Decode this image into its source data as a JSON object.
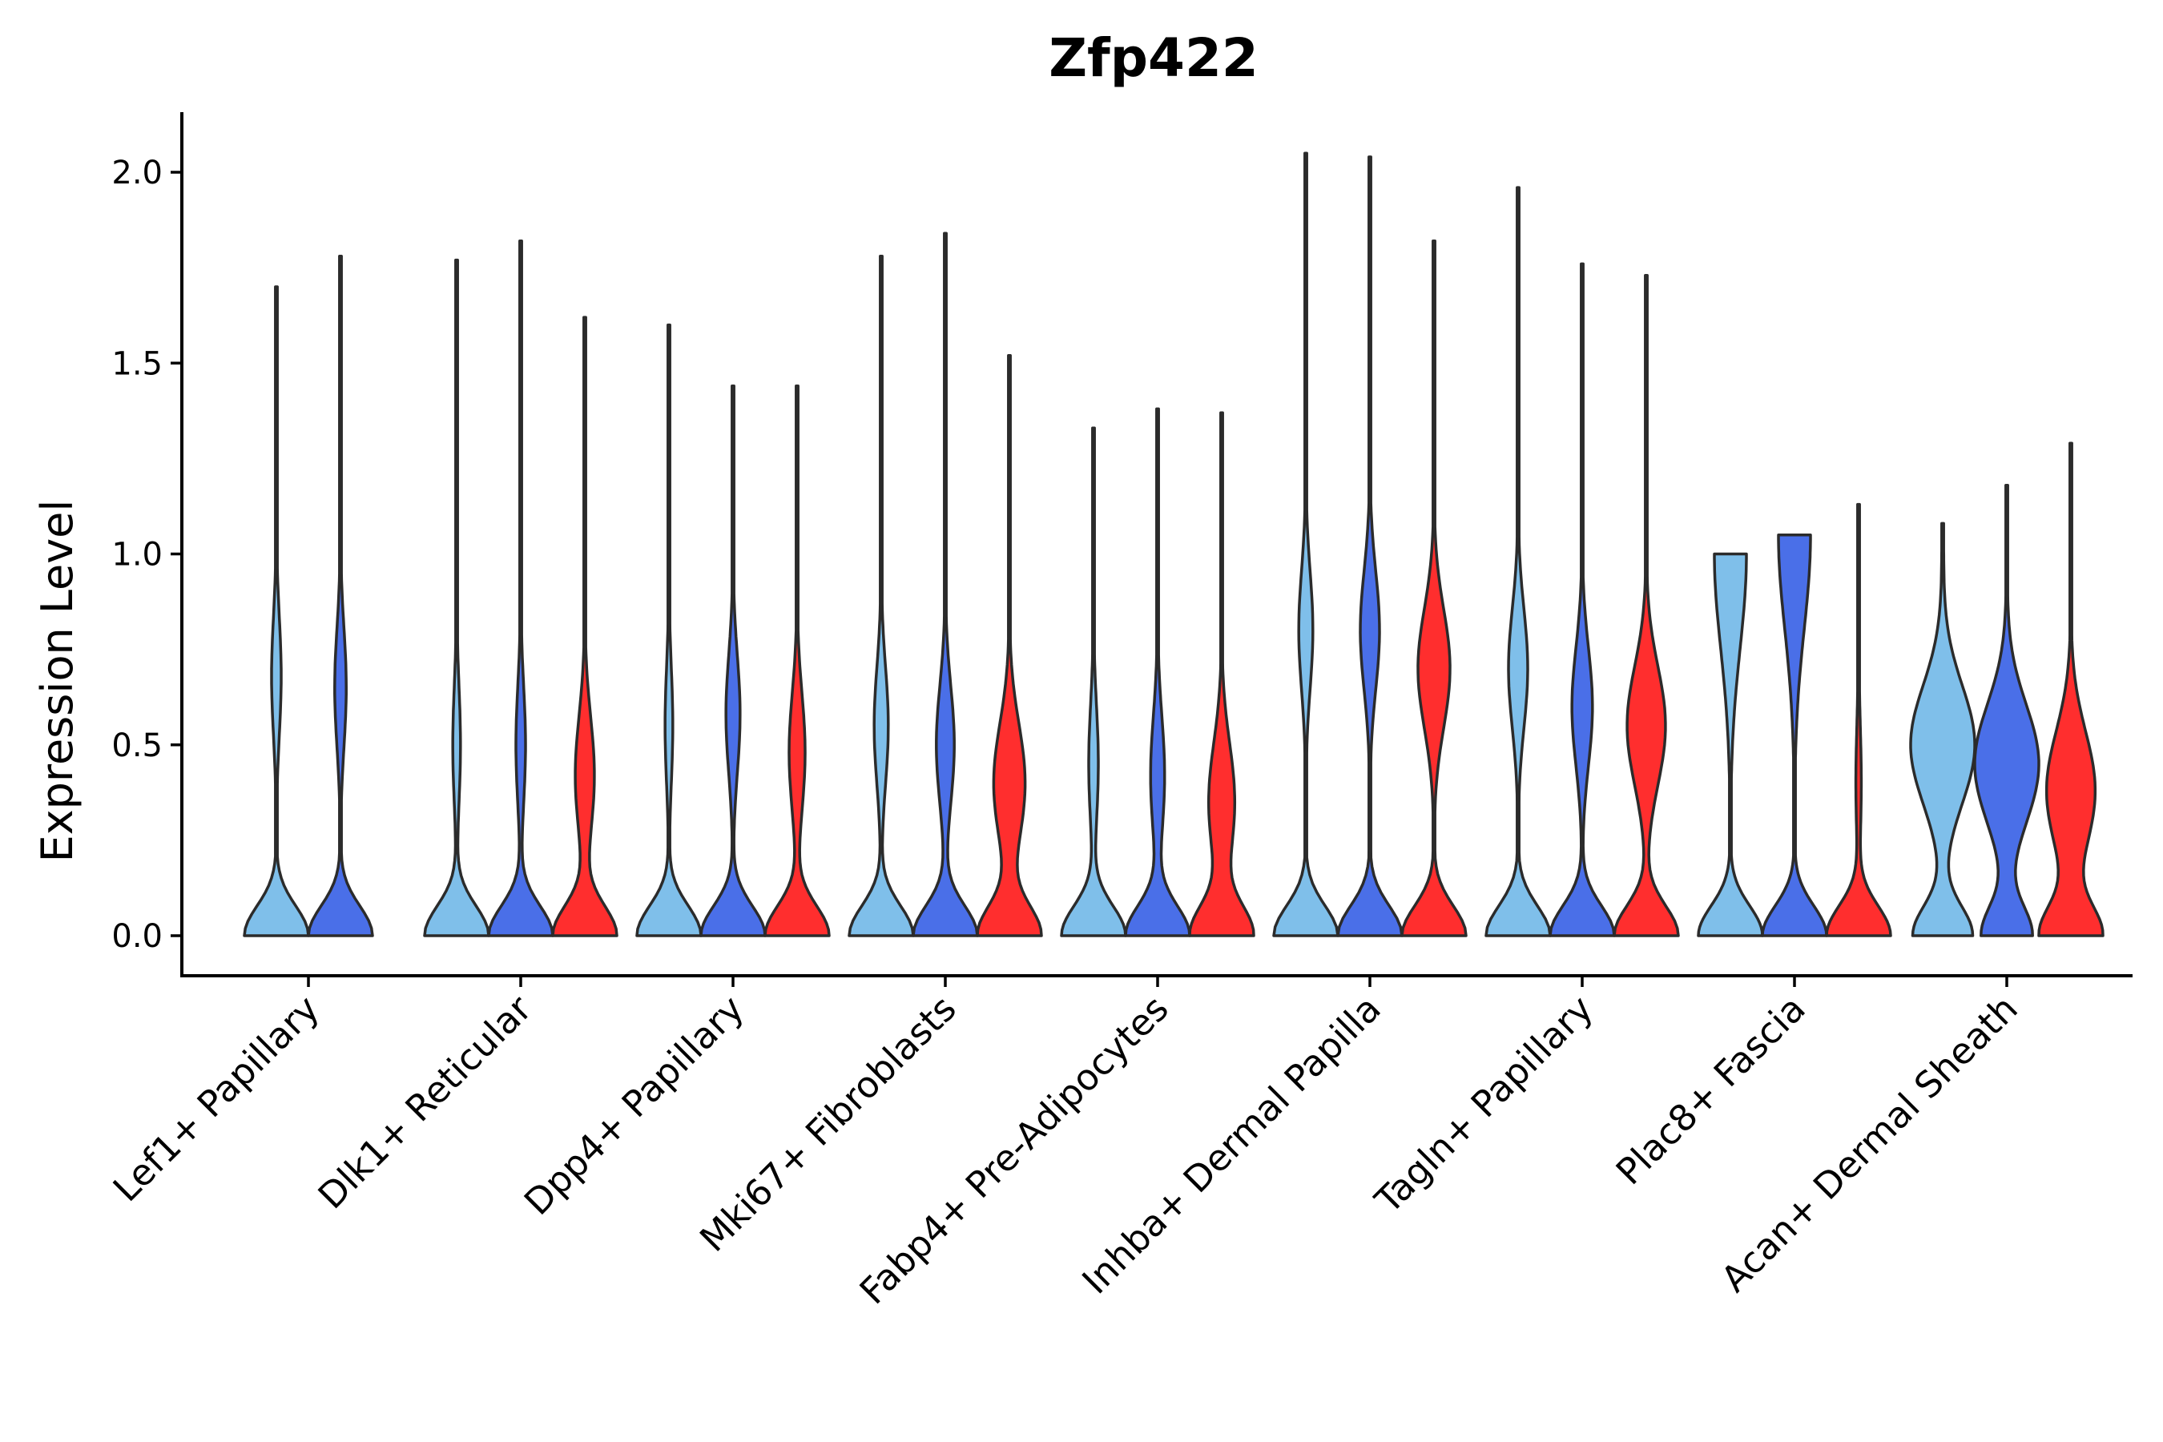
{
  "chart_data": {
    "type": "violin",
    "title": "Zfp422",
    "xlabel": "",
    "ylabel": "Expression Level",
    "ylim": [
      -0.1,
      2.15
    ],
    "yticks": [
      "0.0",
      "0.5",
      "1.0",
      "1.5",
      "2.0"
    ],
    "categories": [
      "Lef1+ Papillary",
      "Dlk1+ Reticular",
      "Dpp4+ Papillary",
      "Mki67+ Fibroblasts",
      "Fabp4+ Pre-Adipocytes",
      "Inhba+ Dermal Papilla",
      "Tagln+ Papillary",
      "Plac8+ Fascia",
      "Acan+ Dermal Sheath"
    ],
    "series": [
      {
        "name": "group-1",
        "color": "#7fbfea"
      },
      {
        "name": "group-2",
        "color": "#4a6fe8"
      },
      {
        "name": "group-3",
        "color": "#ff2e2e"
      }
    ],
    "violins": [
      {
        "category": 0,
        "series": 0,
        "max": 1.7,
        "mode": 0.68,
        "mode_strength": 0.15,
        "base_strength": 1.0
      },
      {
        "category": 0,
        "series": 1,
        "max": 1.78,
        "mode": 0.65,
        "mode_strength": 0.18,
        "base_strength": 1.0
      },
      {
        "category": 1,
        "series": 0,
        "max": 1.77,
        "mode": 0.5,
        "mode_strength": 0.12,
        "base_strength": 1.0
      },
      {
        "category": 1,
        "series": 1,
        "max": 1.82,
        "mode": 0.5,
        "mode_strength": 0.15,
        "base_strength": 1.0
      },
      {
        "category": 1,
        "series": 2,
        "max": 1.62,
        "mode": 0.42,
        "mode_strength": 0.3,
        "base_strength": 1.0
      },
      {
        "category": 2,
        "series": 0,
        "max": 1.6,
        "mode": 0.55,
        "mode_strength": 0.12,
        "base_strength": 1.0
      },
      {
        "category": 2,
        "series": 1,
        "max": 1.44,
        "mode": 0.58,
        "mode_strength": 0.22,
        "base_strength": 1.0
      },
      {
        "category": 2,
        "series": 2,
        "max": 1.44,
        "mode": 0.48,
        "mode_strength": 0.25,
        "base_strength": 1.0
      },
      {
        "category": 3,
        "series": 0,
        "max": 1.78,
        "mode": 0.55,
        "mode_strength": 0.22,
        "base_strength": 1.0
      },
      {
        "category": 3,
        "series": 1,
        "max": 1.84,
        "mode": 0.5,
        "mode_strength": 0.28,
        "base_strength": 1.0
      },
      {
        "category": 3,
        "series": 2,
        "max": 1.52,
        "mode": 0.4,
        "mode_strength": 0.5,
        "base_strength": 1.0
      },
      {
        "category": 4,
        "series": 0,
        "max": 1.33,
        "mode": 0.45,
        "mode_strength": 0.15,
        "base_strength": 1.0
      },
      {
        "category": 4,
        "series": 1,
        "max": 1.38,
        "mode": 0.42,
        "mode_strength": 0.22,
        "base_strength": 1.0
      },
      {
        "category": 4,
        "series": 2,
        "max": 1.37,
        "mode": 0.35,
        "mode_strength": 0.42,
        "base_strength": 1.0
      },
      {
        "category": 5,
        "series": 0,
        "max": 2.05,
        "mode": 0.8,
        "mode_strength": 0.22,
        "base_strength": 1.0
      },
      {
        "category": 5,
        "series": 1,
        "max": 2.04,
        "mode": 0.8,
        "mode_strength": 0.3,
        "base_strength": 1.0
      },
      {
        "category": 5,
        "series": 2,
        "max": 1.82,
        "mode": 0.7,
        "mode_strength": 0.5,
        "base_strength": 1.0
      },
      {
        "category": 6,
        "series": 0,
        "max": 1.96,
        "mode": 0.7,
        "mode_strength": 0.3,
        "base_strength": 1.0
      },
      {
        "category": 6,
        "series": 1,
        "max": 1.76,
        "mode": 0.6,
        "mode_strength": 0.32,
        "base_strength": 1.0
      },
      {
        "category": 6,
        "series": 2,
        "max": 1.73,
        "mode": 0.55,
        "mode_strength": 0.6,
        "base_strength": 1.0
      },
      {
        "category": 7,
        "series": 0,
        "max": 1.0,
        "mode": 0.4,
        "mode_strength": 0.0,
        "base_strength": 0.04
      },
      {
        "category": 7,
        "series": 1,
        "max": 1.05,
        "mode": 0.4,
        "mode_strength": 0.0,
        "base_strength": 0.04
      },
      {
        "category": 7,
        "series": 2,
        "max": 1.13,
        "mode": 0.4,
        "mode_strength": 0.08,
        "base_strength": 0.95
      },
      {
        "category": 8,
        "series": 0,
        "max": 1.08,
        "mode": 0.5,
        "mode_strength": 0.75,
        "base_strength": 0.7
      },
      {
        "category": 8,
        "series": 1,
        "max": 1.18,
        "mode": 0.45,
        "mode_strength": 0.95,
        "base_strength": 0.75
      },
      {
        "category": 8,
        "series": 2,
        "max": 1.29,
        "mode": 0.38,
        "mode_strength": 0.75,
        "base_strength": 0.95
      }
    ]
  }
}
